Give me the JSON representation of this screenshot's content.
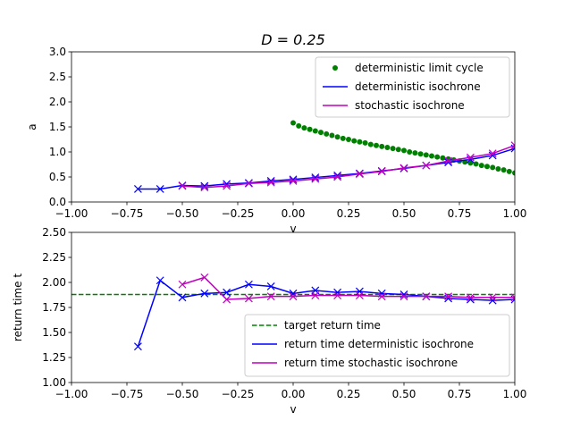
{
  "figure": {
    "title": "D = 0.25",
    "colors": {
      "limit_cycle": "#008000",
      "deterministic": "#0000ff",
      "stochastic": "#bf00bf",
      "target": "#008000"
    }
  },
  "chart_data": [
    {
      "type": "line",
      "xlabel": "v",
      "ylabel": "a",
      "xlim": [
        -1.0,
        1.0
      ],
      "ylim": [
        0.0,
        3.0
      ],
      "xticks": [
        "−1.00",
        "−0.75",
        "−0.50",
        "−0.25",
        "0.00",
        "0.25",
        "0.50",
        "0.75",
        "1.00"
      ],
      "yticks": [
        "0.0",
        "0.5",
        "1.0",
        "1.5",
        "2.0",
        "2.5",
        "3.0"
      ],
      "legend_position": "top-right",
      "series": [
        {
          "name": "deterministic limit cycle",
          "style": "dots",
          "x": [
            0.0,
            0.025,
            0.05,
            0.075,
            0.1,
            0.125,
            0.15,
            0.175,
            0.2,
            0.225,
            0.25,
            0.275,
            0.3,
            0.325,
            0.35,
            0.375,
            0.4,
            0.425,
            0.45,
            0.475,
            0.5,
            0.525,
            0.55,
            0.575,
            0.6,
            0.625,
            0.65,
            0.675,
            0.7,
            0.725,
            0.75,
            0.775,
            0.8,
            0.825,
            0.85,
            0.875,
            0.9,
            0.925,
            0.95,
            0.975,
            1.0
          ],
          "y": [
            1.58,
            1.52,
            1.48,
            1.45,
            1.42,
            1.39,
            1.36,
            1.33,
            1.3,
            1.27,
            1.25,
            1.22,
            1.2,
            1.18,
            1.15,
            1.13,
            1.11,
            1.09,
            1.07,
            1.05,
            1.03,
            1.0,
            0.98,
            0.96,
            0.94,
            0.92,
            0.9,
            0.88,
            0.86,
            0.84,
            0.82,
            0.8,
            0.78,
            0.76,
            0.73,
            0.71,
            0.69,
            0.66,
            0.64,
            0.61,
            0.58
          ]
        },
        {
          "name": "deterministic isochrone",
          "style": "line-x",
          "x": [
            -0.7,
            -0.6,
            -0.5,
            -0.4,
            -0.3,
            -0.2,
            -0.1,
            0.0,
            0.1,
            0.2,
            0.3,
            0.4,
            0.5,
            0.6,
            0.7,
            0.8,
            0.9,
            1.0
          ],
          "y": [
            0.26,
            0.26,
            0.33,
            0.32,
            0.36,
            0.38,
            0.42,
            0.45,
            0.49,
            0.53,
            0.57,
            0.62,
            0.67,
            0.73,
            0.79,
            0.85,
            0.93,
            1.07
          ]
        },
        {
          "name": "stochastic isochrone",
          "style": "line-x",
          "x": [
            -0.5,
            -0.4,
            -0.3,
            -0.2,
            -0.1,
            0.0,
            0.1,
            0.2,
            0.3,
            0.4,
            0.5,
            0.6,
            0.7,
            0.8,
            0.9,
            1.0
          ],
          "y": [
            0.32,
            0.29,
            0.32,
            0.37,
            0.39,
            0.42,
            0.46,
            0.5,
            0.56,
            0.61,
            0.68,
            0.73,
            0.82,
            0.89,
            0.97,
            1.13
          ]
        }
      ]
    },
    {
      "type": "line",
      "xlabel": "v",
      "ylabel": "return time t",
      "xlim": [
        -1.0,
        1.0
      ],
      "ylim": [
        1.0,
        2.5
      ],
      "xticks": [
        "−1.00",
        "−0.75",
        "−0.50",
        "−0.25",
        "0.00",
        "0.25",
        "0.50",
        "0.75",
        "1.00"
      ],
      "yticks": [
        "1.00",
        "1.25",
        "1.50",
        "1.75",
        "2.00",
        "2.25",
        "2.50"
      ],
      "legend_position": "lower-right",
      "series": [
        {
          "name": "target return time",
          "style": "dashed",
          "x": [
            -1.0,
            1.0
          ],
          "y": [
            1.88,
            1.88
          ]
        },
        {
          "name": "return time deterministic isochrone",
          "style": "line-x",
          "x": [
            -0.7,
            -0.6,
            -0.5,
            -0.4,
            -0.3,
            -0.2,
            -0.1,
            0.0,
            0.1,
            0.2,
            0.3,
            0.4,
            0.5,
            0.6,
            0.7,
            0.8,
            0.9,
            1.0
          ],
          "y": [
            1.36,
            2.02,
            1.85,
            1.89,
            1.9,
            1.98,
            1.96,
            1.89,
            1.92,
            1.9,
            1.91,
            1.89,
            1.88,
            1.86,
            1.84,
            1.83,
            1.82,
            1.83
          ]
        },
        {
          "name": "return time stochastic isochrone",
          "style": "line-x",
          "x": [
            -0.5,
            -0.4,
            -0.3,
            -0.2,
            -0.1,
            0.0,
            0.1,
            0.2,
            0.3,
            0.4,
            0.5,
            0.6,
            0.7,
            0.8,
            0.9,
            1.0
          ],
          "y": [
            1.98,
            2.05,
            1.83,
            1.84,
            1.86,
            1.86,
            1.87,
            1.87,
            1.87,
            1.86,
            1.86,
            1.86,
            1.86,
            1.85,
            1.85,
            1.85
          ]
        }
      ]
    }
  ]
}
